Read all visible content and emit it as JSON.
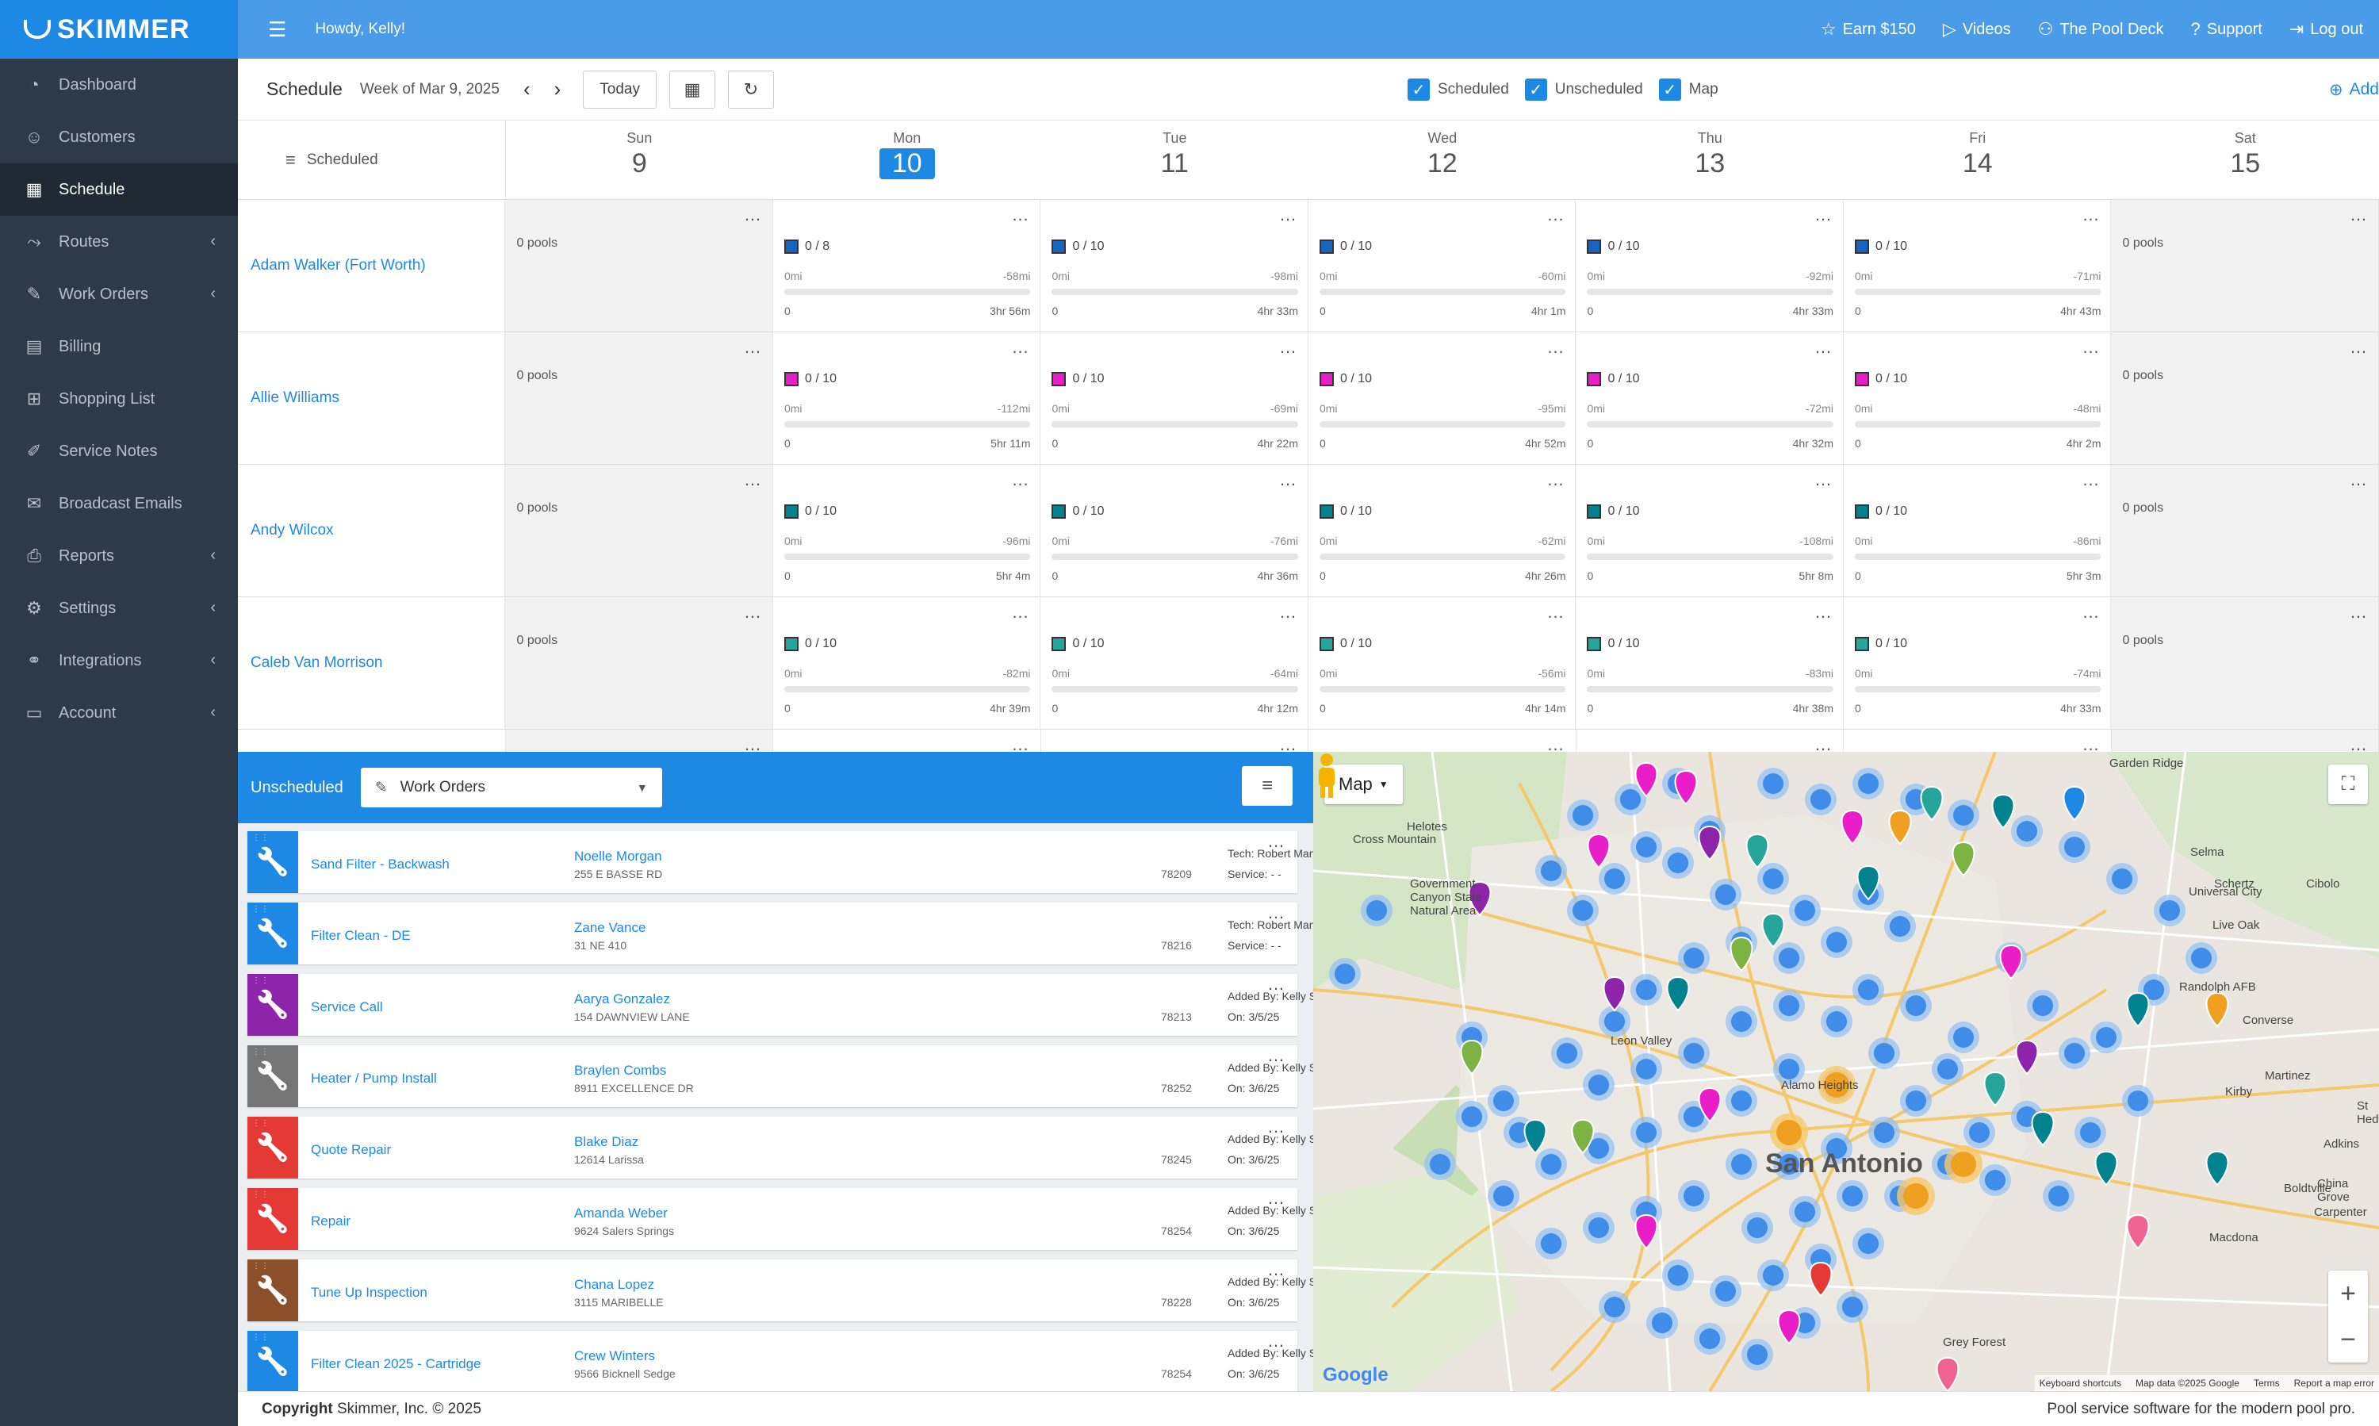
{
  "brand": {
    "name": "SKIMMER"
  },
  "sidebar": {
    "items": [
      {
        "label": "Dashboard",
        "icon": "dashboard-icon",
        "glyph": "◔",
        "chevron": false,
        "active": false
      },
      {
        "label": "Customers",
        "icon": "customers-icon",
        "glyph": "☺",
        "chevron": false,
        "active": false
      },
      {
        "label": "Schedule",
        "icon": "calendar-icon",
        "glyph": "▦",
        "chevron": false,
        "active": true
      },
      {
        "label": "Routes",
        "icon": "routes-icon",
        "glyph": "⤳",
        "chevron": true,
        "active": false
      },
      {
        "label": "Work Orders",
        "icon": "wrench-icon",
        "glyph": "✎",
        "chevron": true,
        "active": false
      },
      {
        "label": "Billing",
        "icon": "billing-icon",
        "glyph": "▤",
        "chevron": false,
        "active": false
      },
      {
        "label": "Shopping List",
        "icon": "cart-icon",
        "glyph": "⊞",
        "chevron": false,
        "active": false
      },
      {
        "label": "Service Notes",
        "icon": "notes-icon",
        "glyph": "✐",
        "chevron": false,
        "active": false
      },
      {
        "label": "Broadcast Emails",
        "icon": "email-icon",
        "glyph": "✉",
        "chevron": false,
        "active": false
      },
      {
        "label": "Reports",
        "icon": "printer-icon",
        "glyph": "⎙",
        "chevron": true,
        "active": false
      },
      {
        "label": "Settings",
        "icon": "gear-icon",
        "glyph": "⚙",
        "chevron": true,
        "active": false
      },
      {
        "label": "Integrations",
        "icon": "link-icon",
        "glyph": "⚭",
        "chevron": true,
        "active": false
      },
      {
        "label": "Account",
        "icon": "account-icon",
        "glyph": "▭",
        "chevron": true,
        "active": false
      }
    ]
  },
  "topbar": {
    "greeting": "Howdy, Kelly!",
    "links": [
      {
        "label": "Earn $150",
        "icon": "star-icon",
        "glyph": "☆"
      },
      {
        "label": "Videos",
        "icon": "play-icon",
        "glyph": "▷"
      },
      {
        "label": "The Pool Deck",
        "icon": "people-icon",
        "glyph": "⚇"
      },
      {
        "label": "Support",
        "icon": "help-icon",
        "glyph": "?"
      },
      {
        "label": "Log out",
        "icon": "logout-icon",
        "glyph": "⇥"
      }
    ]
  },
  "schedule": {
    "title": "Schedule",
    "week": "Week of Mar 9, 2025",
    "today_label": "Today",
    "checks": [
      {
        "label": "Scheduled"
      },
      {
        "label": "Unscheduled"
      },
      {
        "label": "Map"
      }
    ],
    "add_label": "Add",
    "tech_col_label": "Scheduled",
    "days": [
      {
        "name": "Sun",
        "num": "9",
        "today": false
      },
      {
        "name": "Mon",
        "num": "10",
        "today": true
      },
      {
        "name": "Tue",
        "num": "11",
        "today": false
      },
      {
        "name": "Wed",
        "num": "12",
        "today": false
      },
      {
        "name": "Thu",
        "num": "13",
        "today": false
      },
      {
        "name": "Fri",
        "num": "14",
        "today": false
      },
      {
        "name": "Sat",
        "num": "15",
        "today": false
      }
    ],
    "empty_label": "0 pools",
    "rows": [
      {
        "tech": "Adam Walker (Fort Worth)",
        "color": "#1565c0",
        "cells": [
          {
            "count": "0 / 8",
            "start": "0mi",
            "dist": "-58mi",
            "stops": "0",
            "time": "3hr 56m"
          },
          {
            "count": "0 / 10",
            "start": "0mi",
            "dist": "-98mi",
            "stops": "0",
            "time": "4hr 33m"
          },
          {
            "count": "0 / 10",
            "start": "0mi",
            "dist": "-60mi",
            "stops": "0",
            "time": "4hr 1m"
          },
          {
            "count": "0 / 10",
            "start": "0mi",
            "dist": "-92mi",
            "stops": "0",
            "time": "4hr 33m"
          },
          {
            "count": "0 / 10",
            "start": "0mi",
            "dist": "-71mi",
            "stops": "0",
            "time": "4hr 43m"
          }
        ]
      },
      {
        "tech": "Allie Williams",
        "color": "#e91ec8",
        "cells": [
          {
            "count": "0 / 10",
            "start": "0mi",
            "dist": "-112mi",
            "stops": "0",
            "time": "5hr 11m"
          },
          {
            "count": "0 / 10",
            "start": "0mi",
            "dist": "-69mi",
            "stops": "0",
            "time": "4hr 22m"
          },
          {
            "count": "0 / 10",
            "start": "0mi",
            "dist": "-95mi",
            "stops": "0",
            "time": "4hr 52m"
          },
          {
            "count": "0 / 10",
            "start": "0mi",
            "dist": "-72mi",
            "stops": "0",
            "time": "4hr 32m"
          },
          {
            "count": "0 / 10",
            "start": "0mi",
            "dist": "-48mi",
            "stops": "0",
            "time": "4hr 2m"
          }
        ]
      },
      {
        "tech": "Andy Wilcox",
        "color": "#00838f",
        "cells": [
          {
            "count": "0 / 10",
            "start": "0mi",
            "dist": "-96mi",
            "stops": "0",
            "time": "5hr 4m"
          },
          {
            "count": "0 / 10",
            "start": "0mi",
            "dist": "-76mi",
            "stops": "0",
            "time": "4hr 36m"
          },
          {
            "count": "0 / 10",
            "start": "0mi",
            "dist": "-62mi",
            "stops": "0",
            "time": "4hr 26m"
          },
          {
            "count": "0 / 10",
            "start": "0mi",
            "dist": "-108mi",
            "stops": "0",
            "time": "5hr 8m"
          },
          {
            "count": "0 / 10",
            "start": "0mi",
            "dist": "-86mi",
            "stops": "0",
            "time": "5hr 3m"
          }
        ]
      },
      {
        "tech": "Caleb Van Morrison",
        "color": "#26a69a",
        "cells": [
          {
            "count": "0 / 10",
            "start": "0mi",
            "dist": "-82mi",
            "stops": "0",
            "time": "4hr 39m"
          },
          {
            "count": "0 / 10",
            "start": "0mi",
            "dist": "-64mi",
            "stops": "0",
            "time": "4hr 12m"
          },
          {
            "count": "0 / 10",
            "start": "0mi",
            "dist": "-56mi",
            "stops": "0",
            "time": "4hr 14m"
          },
          {
            "count": "0 / 10",
            "start": "0mi",
            "dist": "-83mi",
            "stops": "0",
            "time": "4hr 38m"
          },
          {
            "count": "0 / 10",
            "start": "0mi",
            "dist": "-74mi",
            "stops": "0",
            "time": "4hr 33m"
          }
        ]
      }
    ]
  },
  "unscheduled": {
    "label": "Unscheduled",
    "select_value": "Work Orders",
    "items": [
      {
        "type": "Sand Filter - Backwash",
        "color": "#1e88e5",
        "name": "Noelle Morgan",
        "addr": "255 E BASSE RD",
        "zip": "78209",
        "l1": "Tech: Robert Manor (Filter Cleans)",
        "l2": "Service: - -"
      },
      {
        "type": "Filter Clean - DE",
        "color": "#1e88e5",
        "name": "Zane Vance",
        "addr": "31 NE 410",
        "zip": "78216",
        "l1": "Tech: Robert Manor (Filter Cleans)",
        "l2": "Service: - -"
      },
      {
        "type": "Service Call",
        "color": "#8e24aa",
        "name": "Aarya Gonzalez",
        "addr": "154 DAWNVIEW LANE",
        "zip": "78213",
        "l1": "Added By: Kelly Smithfield",
        "l2": "On: 3/5/25"
      },
      {
        "type": "Heater / Pump Install",
        "color": "#757575",
        "name": "Braylen Combs",
        "addr": "8911 EXCELLENCE DR",
        "zip": "78252",
        "l1": "Added By: Kelly Smithfield",
        "l2": "On: 3/6/25"
      },
      {
        "type": "Quote Repair",
        "color": "#e53935",
        "name": "Blake Diaz",
        "addr": "12614 Larissa",
        "zip": "78245",
        "l1": "Added By: Kelly Smithfield",
        "l2": "On: 3/6/25"
      },
      {
        "type": "Repair",
        "color": "#e53935",
        "name": "Amanda Weber",
        "addr": "9624 Salers Springs",
        "zip": "78254",
        "l1": "Added By: Kelly Smithfield",
        "l2": "On: 3/6/25"
      },
      {
        "type": "Tune Up Inspection",
        "color": "#8d4e2a",
        "name": "Chana Lopez",
        "addr": "3115 MARIBELLE",
        "zip": "78228",
        "l1": "Added By: Kelly Smithfield",
        "l2": "On: 3/6/25"
      },
      {
        "type": "Filter Clean 2025 - Cartridge",
        "color": "#1e88e5",
        "name": "Crew Winters",
        "addr": "9566 Bicknell Sedge",
        "zip": "78254",
        "l1": "Added By: Kelly Smithfield",
        "l2": "On: 3/6/25"
      }
    ]
  },
  "map": {
    "type_label": "Map",
    "city": "San Antonio",
    "places": [
      "Garden Ridge",
      "Selma",
      "Schertz",
      "Cibolo",
      "Universal City",
      "Live Oak",
      "Randolph AFB",
      "Converse",
      "Kirby",
      "Martinez",
      "St Hedwig",
      "Adkins",
      "China Grove",
      "Carpenter",
      "Boldtville",
      "Macdona",
      "Grey Forest",
      "Helotes",
      "Cross Mountain",
      "Government Canyon State Natural Area",
      "Alamo Heights",
      "Leon Valley"
    ],
    "footer": [
      "Keyboard shortcuts",
      "Map data ©2025 Google",
      "Terms",
      "Report a map error"
    ],
    "google": "Google"
  },
  "footer": {
    "copyright_bold": "Copyright",
    "copyright_rest": " Skimmer, Inc. © 2025",
    "tagline": "Pool service software for the modern pool pro."
  }
}
